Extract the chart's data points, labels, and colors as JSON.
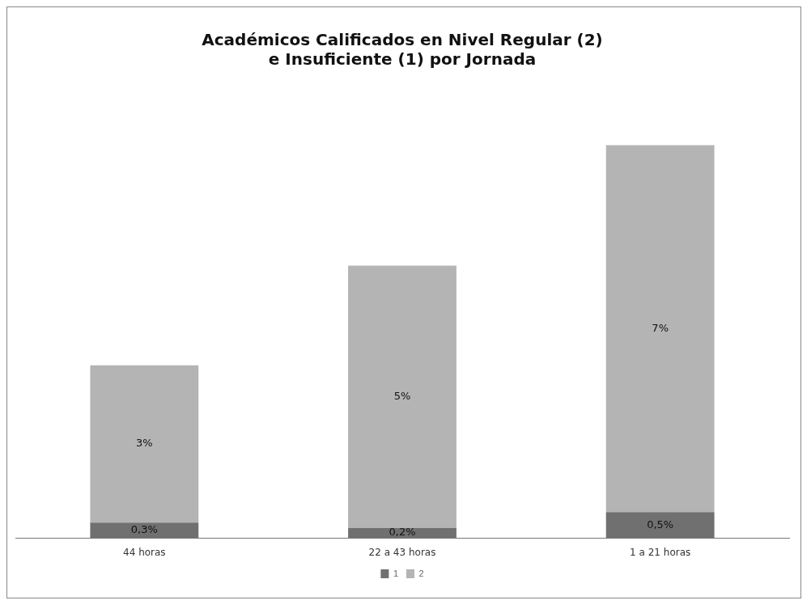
{
  "chart_data": {
    "type": "bar",
    "title": "Académicos Calificados en Nivel Regular (2)\ne Insuficiente (1) por Jornada",
    "categories": [
      "44 horas",
      "22 a 43 horas",
      "1 a 21 horas"
    ],
    "stacked": true,
    "legend": "bottom",
    "grid": false,
    "series": [
      {
        "name": "1",
        "color": "#707070",
        "values": [
          0.3,
          0.2,
          0.5
        ],
        "value_labels": [
          "0,3%",
          "0,2%",
          "0,5%"
        ]
      },
      {
        "name": "2",
        "color": "#b4b4b4",
        "values": [
          3,
          5,
          7
        ],
        "value_labels": [
          "3%",
          "5%",
          "7%"
        ]
      }
    ]
  }
}
